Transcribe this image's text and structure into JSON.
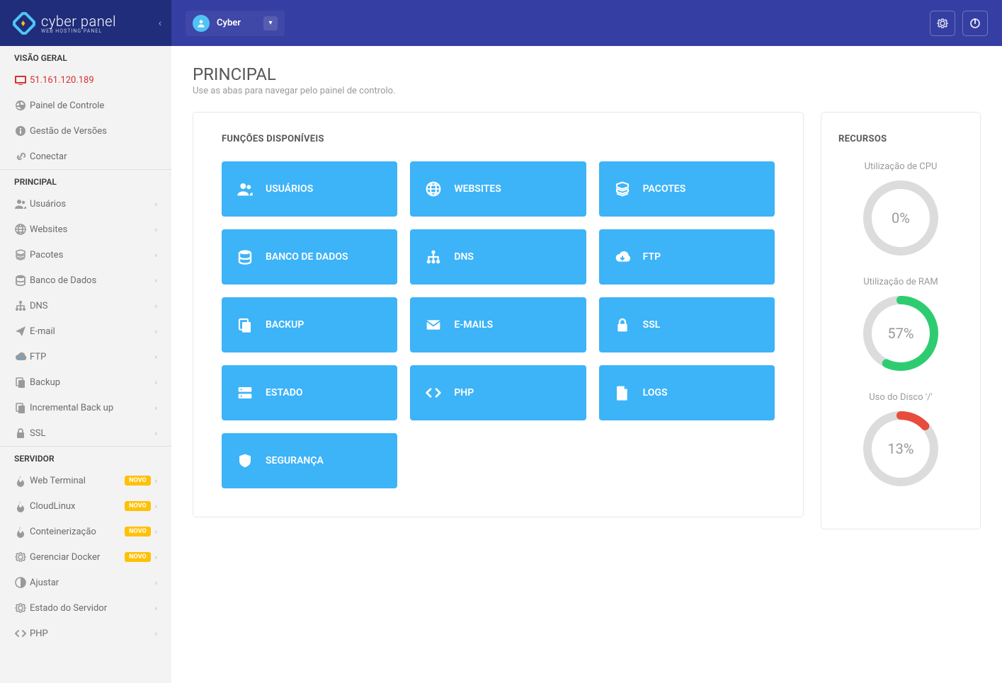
{
  "brand": {
    "name": "cyber panel",
    "tagline": "WEB HOSTING PANEL"
  },
  "user": {
    "name": "Cyber"
  },
  "sidebar": {
    "sections": [
      {
        "title": "VISÃO GERAL",
        "items": [
          {
            "icon": "monitor",
            "label": "51.161.120.189",
            "active": true
          },
          {
            "icon": "dashboard",
            "label": "Painel de Controle"
          },
          {
            "icon": "info",
            "label": "Gestão de Versões"
          },
          {
            "icon": "link",
            "label": "Conectar"
          }
        ]
      },
      {
        "title": "PRINCIPAL",
        "items": [
          {
            "icon": "users",
            "label": "Usuários",
            "expandable": true
          },
          {
            "icon": "globe",
            "label": "Websites",
            "expandable": true
          },
          {
            "icon": "packages",
            "label": "Pacotes",
            "expandable": true
          },
          {
            "icon": "database",
            "label": "Banco de Dados",
            "expandable": true
          },
          {
            "icon": "dns",
            "label": "DNS",
            "expandable": true
          },
          {
            "icon": "send",
            "label": "E-mail",
            "expandable": true
          },
          {
            "icon": "cloud",
            "label": "FTP",
            "expandable": true
          },
          {
            "icon": "copy",
            "label": "Backup",
            "expandable": true
          },
          {
            "icon": "copy",
            "label": "Incremental Back up",
            "expandable": true
          },
          {
            "icon": "lock",
            "label": "SSL",
            "expandable": true
          }
        ]
      },
      {
        "title": "SERVIDOR",
        "items": [
          {
            "icon": "fire",
            "label": "Web Terminal",
            "badge": "NOVO",
            "expandable": true
          },
          {
            "icon": "fire",
            "label": "CloudLinux",
            "badge": "NOVO",
            "expandable": true
          },
          {
            "icon": "fire",
            "label": "Conteinerização",
            "badge": "NOVO",
            "expandable": true
          },
          {
            "icon": "gear",
            "label": "Gerenciar Docker",
            "badge": "NOVO",
            "expandable": true
          },
          {
            "icon": "contrast",
            "label": "Ajustar",
            "expandable": true
          },
          {
            "icon": "gear",
            "label": "Estado do Servidor",
            "expandable": true
          },
          {
            "icon": "code",
            "label": "PHP",
            "expandable": true
          }
        ]
      }
    ]
  },
  "page": {
    "title": "PRINCIPAL",
    "subtitle": "Use as abas para navegar pelo painel de controlo."
  },
  "functions": {
    "title": "FUNÇÕES DISPONÍVEIS",
    "tiles": [
      {
        "icon": "users",
        "label": "USUÁRIOS"
      },
      {
        "icon": "globe",
        "label": "WEBSITES"
      },
      {
        "icon": "packages",
        "label": "PACOTES"
      },
      {
        "icon": "database",
        "label": "BANCO DE DADOS"
      },
      {
        "icon": "dns",
        "label": "DNS"
      },
      {
        "icon": "cloud",
        "label": "FTP"
      },
      {
        "icon": "copy",
        "label": "BACKUP"
      },
      {
        "icon": "mail",
        "label": "E-MAILS"
      },
      {
        "icon": "lock",
        "label": "SSL"
      },
      {
        "icon": "server",
        "label": "ESTADO"
      },
      {
        "icon": "code",
        "label": "PHP"
      },
      {
        "icon": "file",
        "label": "LOGS"
      },
      {
        "icon": "shield",
        "label": "SEGURANÇA"
      }
    ],
    "tile_bg": "#3db3f8"
  },
  "resources": {
    "title": "RECURSOS",
    "items": [
      {
        "label": "Utilização de CPU",
        "value": 0,
        "display": "0%",
        "color": "#dcdcdc"
      },
      {
        "label": "Utilização de RAM",
        "value": 57,
        "display": "57%",
        "color": "#2ecc71"
      },
      {
        "label": "Uso do Disco '/'",
        "value": 13,
        "display": "13%",
        "color": "#e74c3c"
      }
    ]
  }
}
